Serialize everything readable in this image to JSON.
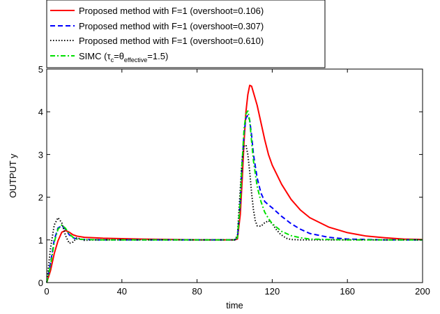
{
  "chart_data": {
    "type": "line",
    "title": "",
    "xlabel": "time",
    "ylabel": "OUTPUT  y",
    "xlim": [
      0,
      200
    ],
    "ylim": [
      0,
      5
    ],
    "xticks": [
      "0",
      "40",
      "80",
      "120",
      "160",
      "200"
    ],
    "yticks": [
      "0",
      "1",
      "2",
      "3",
      "4",
      "5"
    ],
    "grid": false,
    "legend_position": "top-left",
    "series": [
      {
        "name": "Proposed method with F=1 (overshoot=0.106)",
        "color": "#ff0000",
        "dash": "solid",
        "x": [
          0,
          2,
          4,
          6,
          8,
          10,
          12,
          14,
          16,
          20,
          30,
          50,
          80,
          100,
          101.5,
          103,
          104,
          105,
          106,
          107,
          108,
          109,
          110,
          112,
          114,
          116,
          118,
          120,
          125,
          130,
          135,
          140,
          150,
          160,
          170,
          180,
          190,
          200
        ],
        "y": [
          0,
          0.28,
          0.68,
          0.98,
          1.18,
          1.22,
          1.18,
          1.12,
          1.09,
          1.06,
          1.04,
          1.02,
          1.0,
          1.0,
          1.02,
          1.6,
          2.4,
          3.3,
          4.0,
          4.4,
          4.62,
          4.6,
          4.45,
          4.15,
          3.75,
          3.35,
          3.0,
          2.75,
          2.3,
          1.95,
          1.7,
          1.52,
          1.3,
          1.17,
          1.09,
          1.05,
          1.02,
          1.01
        ]
      },
      {
        "name": "Proposed method with F=1 (overshoot=0.307)",
        "color": "#0000ff",
        "dash": "dashed",
        "x": [
          0,
          2,
          4,
          6,
          8,
          10,
          12,
          14,
          16,
          20,
          30,
          50,
          80,
          100,
          101.5,
          103,
          104,
          105,
          106,
          107,
          108,
          109,
          110,
          112,
          114,
          116,
          118,
          120,
          125,
          130,
          135,
          140,
          150,
          160,
          170,
          180,
          200
        ],
        "y": [
          0,
          0.45,
          1.0,
          1.28,
          1.33,
          1.25,
          1.12,
          1.05,
          1.02,
          1.01,
          1.0,
          1.0,
          1.0,
          1.0,
          1.05,
          1.9,
          2.8,
          3.5,
          3.85,
          3.92,
          3.8,
          3.45,
          3.0,
          2.45,
          2.1,
          1.9,
          1.82,
          1.75,
          1.55,
          1.38,
          1.25,
          1.15,
          1.06,
          1.02,
          1.01,
          1.0,
          1.0
        ]
      },
      {
        "name": "Proposed method with F=1 (overshoot=0.610)",
        "color": "#000000",
        "dash": "dotted",
        "x": [
          0,
          2,
          4,
          6,
          8,
          10,
          12,
          14,
          16,
          18,
          20,
          25,
          30,
          50,
          80,
          100,
          101.5,
          103,
          104,
          105,
          106,
          107,
          108,
          109,
          110,
          111,
          112,
          114,
          116,
          118,
          120,
          122,
          124,
          126,
          128,
          130,
          135,
          140,
          150,
          200
        ],
        "y": [
          0,
          0.8,
          1.35,
          1.52,
          1.4,
          1.1,
          0.92,
          0.95,
          1.05,
          1.02,
          0.99,
          1.0,
          1.0,
          1.0,
          1.0,
          1.0,
          1.1,
          2.2,
          2.9,
          3.2,
          3.22,
          3.0,
          2.6,
          2.1,
          1.7,
          1.45,
          1.33,
          1.32,
          1.4,
          1.45,
          1.38,
          1.25,
          1.15,
          1.08,
          1.03,
          1.01,
          1.0,
          1.0,
          1.0,
          1.0
        ]
      },
      {
        "name": "SIMC (τc=θeffective=1.5)",
        "color": "#00e000",
        "dash": "dashdot",
        "x": [
          0,
          2,
          4,
          6,
          8,
          10,
          12,
          14,
          16,
          20,
          30,
          50,
          80,
          100,
          101.5,
          103,
          104,
          105,
          106,
          107,
          108,
          109,
          110,
          112,
          114,
          116,
          118,
          120,
          125,
          130,
          135,
          140,
          150,
          160,
          170,
          200
        ],
        "y": [
          0,
          0.4,
          0.95,
          1.25,
          1.35,
          1.27,
          1.14,
          1.06,
          1.02,
          1.01,
          1.0,
          1.0,
          1.0,
          1.0,
          1.05,
          1.9,
          2.85,
          3.6,
          3.95,
          4.02,
          3.8,
          3.3,
          2.85,
          2.25,
          1.9,
          1.65,
          1.5,
          1.38,
          1.2,
          1.1,
          1.05,
          1.02,
          1.01,
          1.0,
          1.0,
          1.0
        ]
      }
    ],
    "legend_label_parts": {
      "simc_prefix": "SIMC (",
      "simc_tau": "τ",
      "simc_tau_sub": "c",
      "simc_eq1": "=",
      "simc_theta": "θ",
      "simc_theta_sub": "effective",
      "simc_suffix": "=1.5)"
    }
  }
}
